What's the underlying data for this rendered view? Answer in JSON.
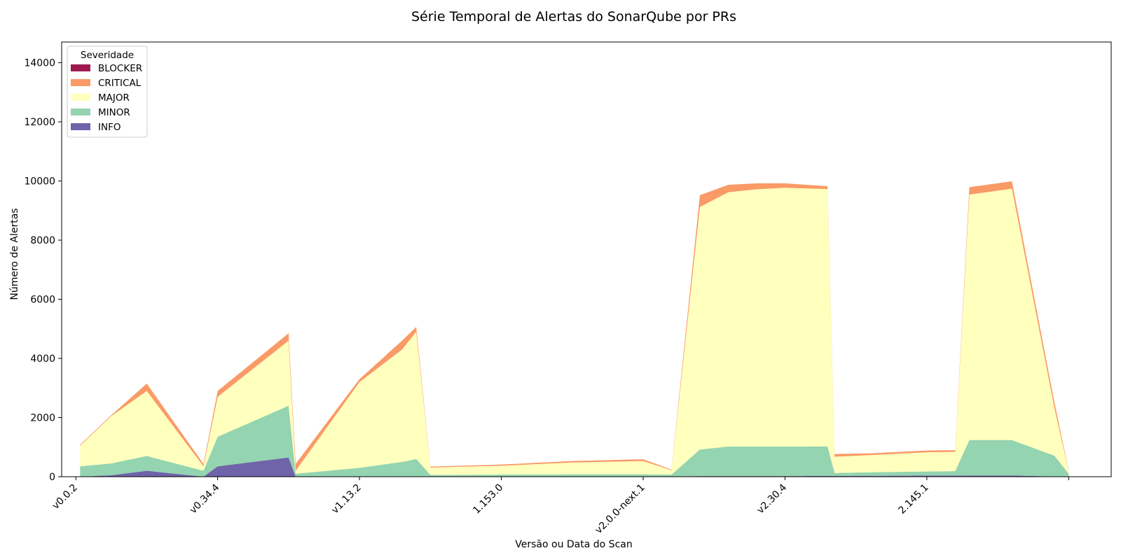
{
  "chart_data": {
    "type": "area",
    "stacked": true,
    "title": "Série Temporal de Alertas do SonarQube por PRs",
    "xlabel": "Versão ou Data do Scan",
    "ylabel": "Número de Alertas",
    "ylim": [
      0,
      14700
    ],
    "yticks": [
      0,
      2000,
      4000,
      6000,
      8000,
      10000,
      12000,
      14000
    ],
    "xlim": [
      -0.1,
      7.3
    ],
    "xticks": [
      {
        "x": 0,
        "label": "v0.0.2"
      },
      {
        "x": 1,
        "label": "v0.34.4"
      },
      {
        "x": 2,
        "label": "v1.13.2"
      },
      {
        "x": 3,
        "label": "1.153.0"
      },
      {
        "x": 4,
        "label": "v2.0.0-next.1"
      },
      {
        "x": 5,
        "label": "v2.30.4"
      },
      {
        "x": 6,
        "label": "2.145.1"
      },
      {
        "x": 7,
        "label": ""
      }
    ],
    "legend": {
      "title": "Severidade",
      "position": "upper-left"
    },
    "series": [
      {
        "name": "BLOCKER",
        "color": "#9e1a4f",
        "x": [
          0.03,
          0.25,
          0.5,
          0.9,
          1.5,
          2.3,
          3.0,
          4.0,
          4.2,
          4.6,
          5.0,
          5.5,
          6.0,
          6.3,
          6.6,
          6.9,
          7.0
        ],
        "values": [
          0,
          0,
          0,
          0,
          0,
          0,
          0,
          0,
          0,
          0,
          0,
          0,
          0,
          0,
          0,
          0,
          0
        ]
      },
      {
        "name": "CRITICAL",
        "color": "#fa9a66",
        "x": [
          0.03,
          0.25,
          0.5,
          0.9,
          1.0,
          1.5,
          2.0,
          2.3,
          2.5,
          3.0,
          3.5,
          4.0,
          4.2,
          4.4,
          4.6,
          4.8,
          5.0,
          5.3,
          5.6,
          6.0,
          6.2,
          6.3,
          6.6,
          6.9,
          7.0
        ],
        "values": [
          30,
          30,
          250,
          80,
          200,
          250,
          100,
          300,
          30,
          40,
          50,
          60,
          20,
          400,
          250,
          200,
          150,
          100,
          60,
          60,
          60,
          250,
          250,
          200,
          20
        ]
      },
      {
        "name": "MAJOR",
        "color": "#ffffbe",
        "x": [
          0.03,
          0.25,
          0.5,
          0.9,
          1.0,
          1.5,
          1.55,
          2.0,
          2.3,
          2.4,
          2.5,
          3.0,
          3.5,
          4.0,
          4.2,
          4.4,
          4.6,
          4.8,
          5.0,
          5.3,
          5.35,
          5.6,
          6.0,
          6.2,
          6.3,
          6.6,
          6.9,
          7.0
        ],
        "values": [
          700,
          1600,
          2200,
          150,
          1350,
          2200,
          100,
          2900,
          3800,
          4300,
          250,
          300,
          400,
          450,
          150,
          8200,
          8600,
          8700,
          8750,
          8700,
          550,
          580,
          650,
          650,
          8300,
          8500,
          1600,
          100
        ]
      },
      {
        "name": "MINOR",
        "color": "#94d4b0",
        "x": [
          0.03,
          0.25,
          0.5,
          0.9,
          1.0,
          1.5,
          1.55,
          2.0,
          2.3,
          2.4,
          2.5,
          3.0,
          3.5,
          4.0,
          4.2,
          4.4,
          4.6,
          4.8,
          5.0,
          5.3,
          5.35,
          5.6,
          6.0,
          6.2,
          6.3,
          6.6,
          6.9,
          7.0
        ],
        "values": [
          350,
          400,
          500,
          200,
          1000,
          1750,
          100,
          300,
          500,
          600,
          60,
          70,
          80,
          80,
          60,
          900,
          1000,
          1000,
          1000,
          1000,
          100,
          120,
          140,
          150,
          1200,
          1200,
          700,
          100
        ]
      },
      {
        "name": "INFO",
        "color": "#6f63aa",
        "x": [
          0.03,
          0.25,
          0.5,
          0.9,
          1.0,
          1.5,
          1.55,
          2.0,
          2.3,
          2.4,
          2.5,
          3.0,
          4.0,
          4.4,
          5.0,
          6.3,
          6.6,
          7.0
        ],
        "values": [
          0,
          50,
          200,
          0,
          350,
          650,
          0,
          0,
          0,
          0,
          0,
          0,
          0,
          20,
          20,
          40,
          40,
          0
        ]
      }
    ]
  }
}
